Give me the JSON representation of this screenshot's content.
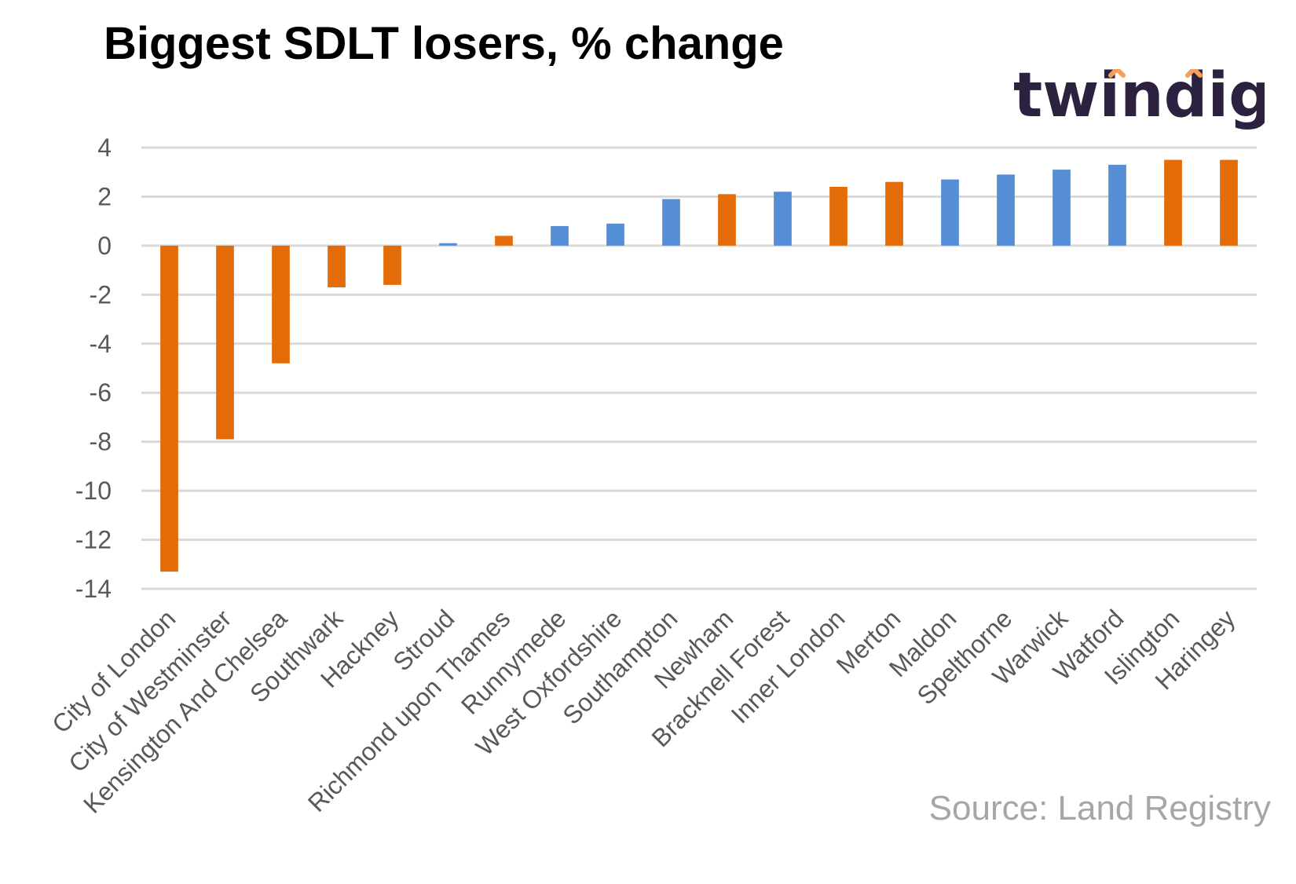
{
  "chart_data": {
    "type": "bar",
    "title": "Biggest SDLT losers, % change",
    "xlabel": "",
    "ylabel": "",
    "ylim": [
      -14,
      4
    ],
    "yticks": [
      4,
      2,
      0,
      -2,
      -4,
      -6,
      -8,
      -10,
      -12,
      -14
    ],
    "grid": true,
    "legend": "none",
    "colors": {
      "orange": "#e36c09",
      "blue": "#558ed5",
      "grid": "#d9d9d9",
      "tick_text": "#595959"
    },
    "categories": [
      "City of London",
      "City of Westminster",
      "Kensington And Chelsea",
      "Southwark",
      "Hackney",
      "Stroud",
      "Richmond upon Thames",
      "Runnymede",
      "West Oxfordshire",
      "Southampton",
      "Newham",
      "Bracknell Forest",
      "Inner London",
      "Merton",
      "Maldon",
      "Spelthorne",
      "Warwick",
      "Watford",
      "Islington",
      "Haringey"
    ],
    "values": [
      -13.3,
      -7.9,
      -4.8,
      -1.7,
      -1.6,
      0.1,
      0.4,
      0.8,
      0.9,
      1.9,
      2.1,
      2.2,
      2.4,
      2.6,
      2.7,
      2.9,
      3.1,
      3.3,
      3.5,
      3.5
    ],
    "bar_colors": [
      "orange",
      "orange",
      "orange",
      "orange",
      "orange",
      "blue",
      "orange",
      "blue",
      "blue",
      "blue",
      "orange",
      "blue",
      "orange",
      "orange",
      "blue",
      "blue",
      "blue",
      "blue",
      "orange",
      "orange"
    ]
  },
  "logo": {
    "text": "twindig",
    "text_color": "#2d2140",
    "accent_color": "#f5a05a"
  },
  "source": "Source: Land Registry"
}
